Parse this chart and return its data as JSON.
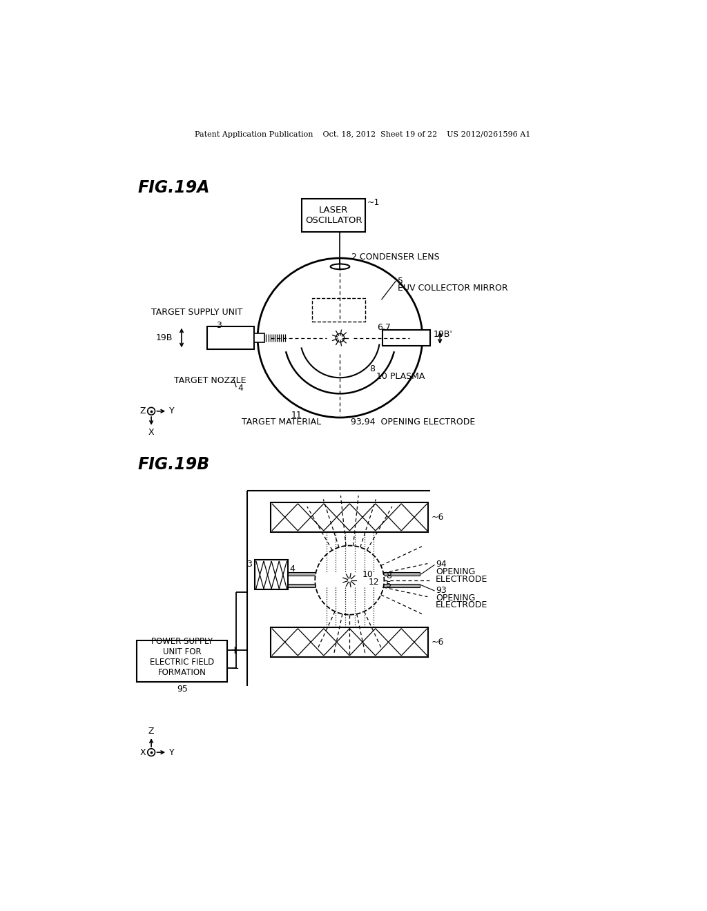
{
  "bg_color": "#ffffff",
  "header": "Patent Application Publication    Oct. 18, 2012  Sheet 19 of 22    US 2012/0261596 A1",
  "fig19a_label": "FIG.19A",
  "fig19b_label": "FIG.19B"
}
